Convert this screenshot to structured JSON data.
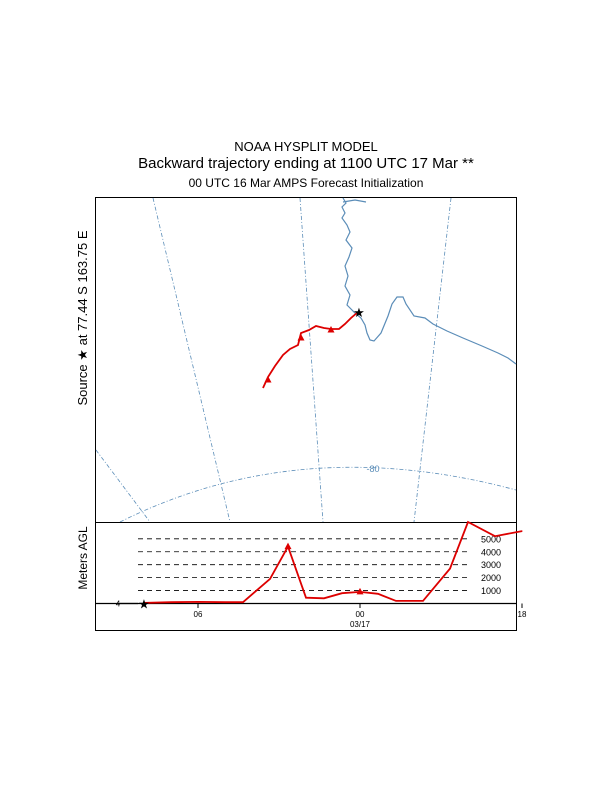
{
  "header": {
    "model": "NOAA HYSPLIT MODEL",
    "subtitle": "Backward trajectory ending at 1100 UTC 17 Mar **",
    "meteo": "00 UTC 16 Mar    AMPS  Forecast Initialization"
  },
  "map": {
    "source_prefix": "Source",
    "source_star": "★",
    "source_suffix": "at   77.44 S  163.75 E",
    "latitude_label": "-80",
    "colors": {
      "trajectory": "#dd0000",
      "coastline": "#5b8db8",
      "gridlines": "#5b8db8"
    }
  },
  "chart_data": {
    "type": "line",
    "title": "",
    "xlabel": "",
    "ylabel": "Meters AGL",
    "x_ticks": [
      {
        "label": "06",
        "hour": 6
      },
      {
        "label": "00",
        "hour": 24
      },
      {
        "label": "18",
        "hour": 42
      }
    ],
    "date_label": "03/17",
    "y_levels": [
      1000,
      2000,
      3000,
      4000,
      5000
    ],
    "y_level_labels": [
      "1000",
      "2000",
      "3000",
      "4000",
      "5000"
    ],
    "ylim": [
      0,
      6300
    ],
    "start_marker_label": "4",
    "series": [
      {
        "values": [
          {
            "hour": 0,
            "m": 50
          },
          {
            "hour": 3,
            "m": 100
          },
          {
            "hour": 6,
            "m": 120
          },
          {
            "hour": 9,
            "m": 100
          },
          {
            "hour": 11,
            "m": 100
          },
          {
            "hour": 14,
            "m": 1900
          },
          {
            "hour": 16,
            "m": 4400
          },
          {
            "hour": 18,
            "m": 450
          },
          {
            "hour": 20,
            "m": 400
          },
          {
            "hour": 22,
            "m": 800
          },
          {
            "hour": 24,
            "m": 900
          },
          {
            "hour": 26,
            "m": 750
          },
          {
            "hour": 28,
            "m": 200
          },
          {
            "hour": 31,
            "m": 200
          },
          {
            "hour": 34,
            "m": 2700
          },
          {
            "hour": 36,
            "m": 6300
          },
          {
            "hour": 39,
            "m": 5200
          },
          {
            "hour": 42,
            "m": 5600
          }
        ]
      }
    ]
  }
}
